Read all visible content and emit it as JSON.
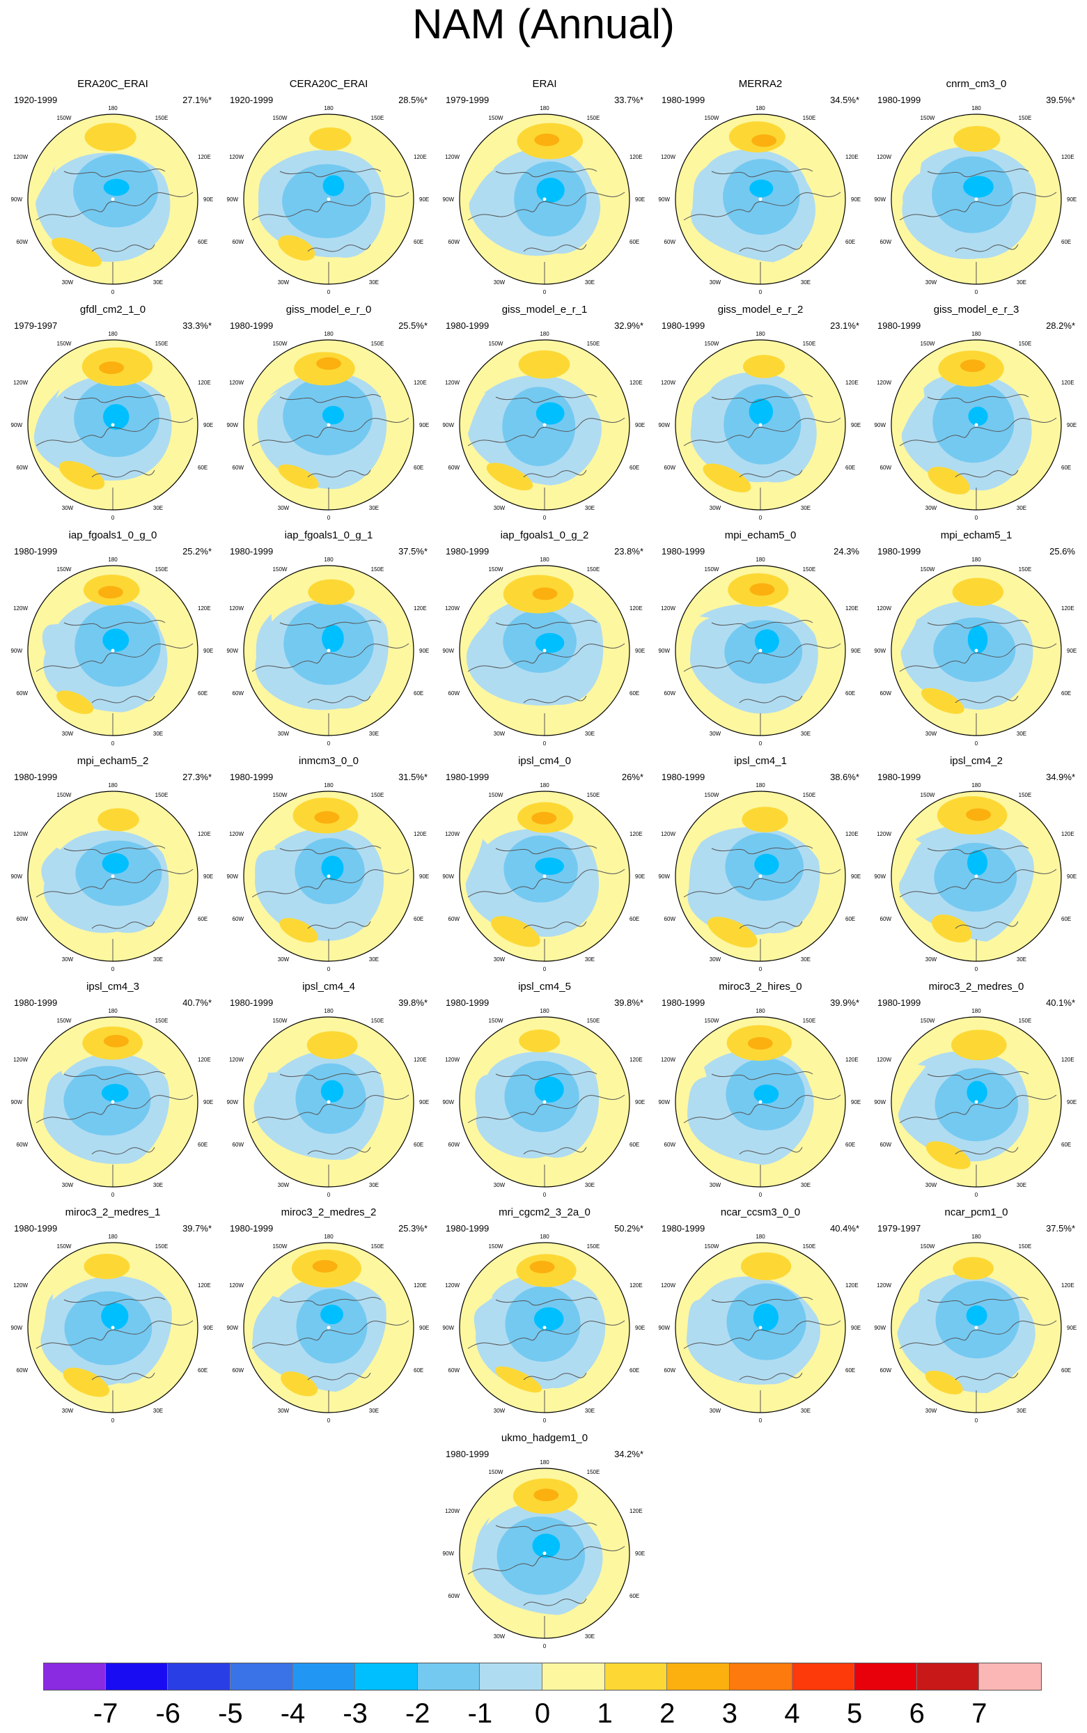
{
  "title": "NAM (Annual)",
  "chart_data": {
    "type": "polar-map-panels",
    "title": "NAM (Annual)",
    "panels": [
      {
        "name": "ERA20C_ERAI",
        "years": "1920-1999",
        "pct": "27.1%*"
      },
      {
        "name": "CERA20C_ERAI",
        "years": "1920-1999",
        "pct": "28.5%*"
      },
      {
        "name": "ERAI",
        "years": "1979-1999",
        "pct": "33.7%*"
      },
      {
        "name": "MERRA2",
        "years": "1980-1999",
        "pct": "34.5%*"
      },
      {
        "name": "cnrm_cm3_0",
        "years": "1980-1999",
        "pct": "39.5%*"
      },
      {
        "name": "gfdl_cm2_1_0",
        "years": "1979-1997",
        "pct": "33.3%*"
      },
      {
        "name": "giss_model_e_r_0",
        "years": "1980-1999",
        "pct": "25.5%*"
      },
      {
        "name": "giss_model_e_r_1",
        "years": "1980-1999",
        "pct": "32.9%*"
      },
      {
        "name": "giss_model_e_r_2",
        "years": "1980-1999",
        "pct": "23.1%*"
      },
      {
        "name": "giss_model_e_r_3",
        "years": "1980-1999",
        "pct": "28.2%*"
      },
      {
        "name": "iap_fgoals1_0_g_0",
        "years": "1980-1999",
        "pct": "25.2%*"
      },
      {
        "name": "iap_fgoals1_0_g_1",
        "years": "1980-1999",
        "pct": "37.5%*"
      },
      {
        "name": "iap_fgoals1_0_g_2",
        "years": "1980-1999",
        "pct": "23.8%*"
      },
      {
        "name": "mpi_echam5_0",
        "years": "1980-1999",
        "pct": "24.3%"
      },
      {
        "name": "mpi_echam5_1",
        "years": "1980-1999",
        "pct": "25.6%"
      },
      {
        "name": "mpi_echam5_2",
        "years": "1980-1999",
        "pct": "27.3%*"
      },
      {
        "name": "inmcm3_0_0",
        "years": "1980-1999",
        "pct": "31.5%*"
      },
      {
        "name": "ipsl_cm4_0",
        "years": "1980-1999",
        "pct": "26%*"
      },
      {
        "name": "ipsl_cm4_1",
        "years": "1980-1999",
        "pct": "38.6%*"
      },
      {
        "name": "ipsl_cm4_2",
        "years": "1980-1999",
        "pct": "34.9%*"
      },
      {
        "name": "ipsl_cm4_3",
        "years": "1980-1999",
        "pct": "40.7%*"
      },
      {
        "name": "ipsl_cm4_4",
        "years": "1980-1999",
        "pct": "39.8%*"
      },
      {
        "name": "ipsl_cm4_5",
        "years": "1980-1999",
        "pct": "39.8%*"
      },
      {
        "name": "miroc3_2_hires_0",
        "years": "1980-1999",
        "pct": "39.9%*"
      },
      {
        "name": "miroc3_2_medres_0",
        "years": "1980-1999",
        "pct": "40.1%*"
      },
      {
        "name": "miroc3_2_medres_1",
        "years": "1980-1999",
        "pct": "39.7%*"
      },
      {
        "name": "miroc3_2_medres_2",
        "years": "1980-1999",
        "pct": "25.3%*"
      },
      {
        "name": "mri_cgcm2_3_2a_0",
        "years": "1980-1999",
        "pct": "50.2%*"
      },
      {
        "name": "ncar_ccsm3_0_0",
        "years": "1980-1999",
        "pct": "40.4%*"
      },
      {
        "name": "ncar_pcm1_0",
        "years": "1979-1997",
        "pct": "37.5%*"
      },
      {
        "name": "ukmo_hadgem1_0",
        "years": "1980-1999",
        "pct": "34.2%*"
      }
    ],
    "map_labels": {
      "top": "180",
      "bottom": "0",
      "left": "90W",
      "right": "90E",
      "upper_left": "120W",
      "upper_right": "120E",
      "lower_left": "60W",
      "lower_right": "60E",
      "top_left": "150W",
      "top_right": "150E",
      "bottom_left": "30W",
      "bottom_right": "30E"
    },
    "colorbar": {
      "ticks": [
        "-7",
        "-6",
        "-5",
        "-4",
        "-3",
        "-2",
        "-1",
        "0",
        "1",
        "2",
        "3",
        "4",
        "5",
        "6",
        "7"
      ],
      "colors": [
        "#8a2be2",
        "#1a0cf2",
        "#2a3ee6",
        "#3a73e8",
        "#2196f3",
        "#00bfff",
        "#74c9f1",
        "#b0dcf1",
        "#fdf7a0",
        "#fdd835",
        "#fbb010",
        "#fd7a0e",
        "#fd3a0a",
        "#e8000a",
        "#c81818",
        "#fbb6b6"
      ]
    },
    "map_colors": {
      "ocean_neutral": "#fdf7a0",
      "negative": "#b0dcf1",
      "negative_mid": "#74c9f1",
      "negative_strong": "#00bfff",
      "positive": "#fdd835",
      "positive_mid": "#fbb010"
    }
  }
}
